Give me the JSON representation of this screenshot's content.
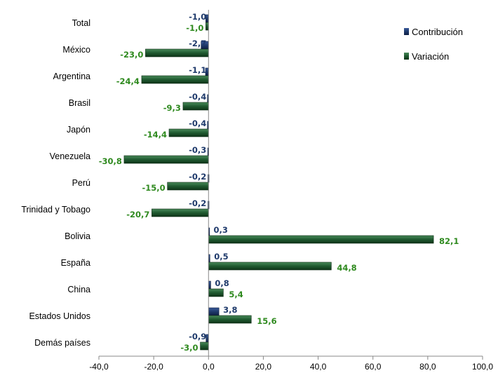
{
  "chart_data": {
    "type": "bar",
    "orientation": "horizontal",
    "categories": [
      "Total",
      "México",
      "Argentina",
      "Brasil",
      "Japón",
      "Venezuela",
      "Perú",
      "Trinidad y Tobago",
      "Bolivia",
      "España",
      "China",
      "Estados Unidos",
      "Demás países"
    ],
    "series": [
      {
        "name": "Contribución",
        "color": "#1f3a6b",
        "values": [
          -1.0,
          -2.7,
          -1.1,
          -0.4,
          -0.4,
          -0.3,
          -0.2,
          -0.2,
          0.3,
          0.5,
          0.8,
          3.8,
          -0.9
        ],
        "labels": [
          "-1,0",
          "-2,7",
          "-1,1",
          "-0,4",
          "-0,4",
          "-0,3",
          "-0,2",
          "-0,2",
          "0,3",
          "0,5",
          "0,8",
          "3,8",
          "-0,9"
        ]
      },
      {
        "name": "Variación",
        "color": "#1f5a30",
        "values": [
          -1.0,
          -23.0,
          -24.4,
          -9.3,
          -14.4,
          -30.8,
          -15.0,
          -20.7,
          82.1,
          44.8,
          5.4,
          15.6,
          -3.0
        ],
        "labels": [
          "-1,0",
          "-23,0",
          "-24,4",
          "-9,3",
          "-14,4",
          "-30,8",
          "-15,0",
          "-20,7",
          "82,1",
          "44,8",
          "5,4",
          "15,6",
          "-3,0"
        ]
      }
    ],
    "xlim": [
      -40,
      100
    ],
    "xticks": [
      -40,
      -20,
      0,
      20,
      40,
      60,
      80,
      100
    ],
    "xtick_labels": [
      "-40,0",
      "-20,0",
      "0,0",
      "20,0",
      "40,0",
      "60,0",
      "80,0",
      "100,0"
    ],
    "grid": false,
    "legend_position": "top-right",
    "label_colors": {
      "Contribución": "#1f3a6b",
      "Variación": "#2f8a1f"
    }
  }
}
